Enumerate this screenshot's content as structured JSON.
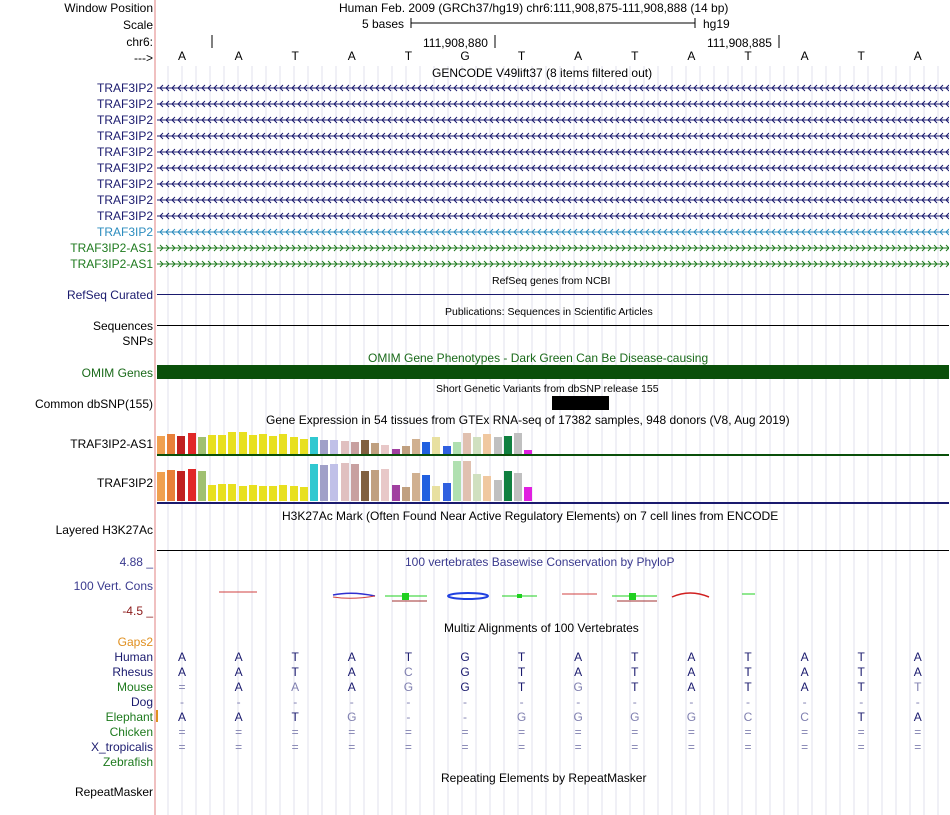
{
  "header": {
    "window_position_label": "Window Position",
    "scale_label": "Scale",
    "chrom_label": "chr6:",
    "strand_label": "--->",
    "assembly_text": "Human Feb. 2009 (GRCh37/hg19)   chr6:111,908,875-111,908,888 (14 bp)",
    "scale_text": "5 bases",
    "assembly_short": "hg19",
    "coord_1": "111,908,880",
    "coord_2": "111,908,885",
    "bases": [
      "A",
      "A",
      "T",
      "A",
      "T",
      "G",
      "T",
      "A",
      "T",
      "A",
      "T",
      "A",
      "T",
      "A"
    ]
  },
  "gencode": {
    "title": "GENCODE V49lift37 (8 items filtered out)",
    "genes": [
      {
        "name": "TRAF3IP2",
        "color": "#1a1a6e",
        "strand": "minus"
      },
      {
        "name": "TRAF3IP2",
        "color": "#1a1a6e",
        "strand": "minus"
      },
      {
        "name": "TRAF3IP2",
        "color": "#1a1a6e",
        "strand": "minus"
      },
      {
        "name": "TRAF3IP2",
        "color": "#1a1a6e",
        "strand": "minus"
      },
      {
        "name": "TRAF3IP2",
        "color": "#1a1a6e",
        "strand": "minus"
      },
      {
        "name": "TRAF3IP2",
        "color": "#1a1a6e",
        "strand": "minus"
      },
      {
        "name": "TRAF3IP2",
        "color": "#1a1a6e",
        "strand": "minus"
      },
      {
        "name": "TRAF3IP2",
        "color": "#1a1a6e",
        "strand": "minus"
      },
      {
        "name": "TRAF3IP2",
        "color": "#1a1a6e",
        "strand": "minus"
      },
      {
        "name": "TRAF3IP2",
        "color": "#2b8cbe",
        "strand": "minus"
      },
      {
        "name": "TRAF3IP2-AS1",
        "color": "#1e7a1e",
        "strand": "plus"
      },
      {
        "name": "TRAF3IP2-AS1",
        "color": "#1e7a1e",
        "strand": "plus"
      }
    ]
  },
  "refseq": {
    "title": "RefSeq genes from NCBI",
    "label": "RefSeq Curated"
  },
  "publications": {
    "title": "Publications: Sequences in Scientific Articles",
    "label_1": "Sequences",
    "label_2": "SNPs"
  },
  "omim": {
    "title": "OMIM Gene Phenotypes - Dark Green Can Be Disease-causing",
    "label": "OMIM Genes"
  },
  "dbsnp": {
    "title": "Short Genetic Variants from dbSNP release 155",
    "label": "Common dbSNP(155)"
  },
  "gtex": {
    "title": "Gene Expression in 54 tissues from GTEx RNA-seq of 17382 samples, 948 donors (V8, Aug 2019)",
    "gene_1": "TRAF3IP2-AS1",
    "gene_2": "TRAF3IP2",
    "colors": [
      "#f0a050",
      "#e8803a",
      "#c02020",
      "#e02828",
      "#a0c070",
      "#e8e020",
      "#e8e020",
      "#e8e020",
      "#e8e020",
      "#e8e020",
      "#e8e020",
      "#e8e020",
      "#e8e020",
      "#e8e020",
      "#e8e020",
      "#30c8d0",
      "#a0a0c8",
      "#c0c0e8",
      "#e0c0c0",
      "#c8a0a0",
      "#806040",
      "#c0a080",
      "#e8c8c8",
      "#a040a0",
      "#c0a080",
      "#d0b090",
      "#2060e0",
      "#e8e0a0",
      "#3060e0",
      "#b0e0b0",
      "#e0c0b0",
      "#d0e0c0",
      "#f0c8a0",
      "#c0c0c0",
      "#108040",
      "#c0c0c0",
      "#e020e0"
    ],
    "values_1": [
      18,
      20,
      18,
      21,
      17,
      19,
      19,
      22,
      22,
      19,
      20,
      18,
      20,
      17,
      15,
      17,
      14,
      14,
      13,
      12,
      14,
      11,
      9,
      5,
      8,
      15,
      12,
      17,
      8,
      12,
      21,
      17,
      20,
      17,
      18,
      21,
      4
    ],
    "values_2": [
      29,
      31,
      30,
      32,
      30,
      16,
      17,
      17,
      15,
      16,
      15,
      15,
      16,
      15,
      14,
      37,
      36,
      37,
      38,
      37,
      30,
      31,
      32,
      16,
      14,
      28,
      26,
      15,
      18,
      40,
      40,
      27,
      25,
      21,
      30,
      28,
      14
    ]
  },
  "h3k27ac": {
    "title": "H3K27Ac Mark (Often Found Near Active Regulatory Elements) on 7 cell lines from ENCODE",
    "label": "Layered H3K27Ac"
  },
  "phylop": {
    "title": "100 vertebrates Basewise Conservation by PhyloP",
    "label": "100 Vert. Cons",
    "max": "4.88 _",
    "min": "-4.5 _"
  },
  "multiz": {
    "title": "Multiz Alignments of 100 Vertebrates",
    "gaps_label": "Gaps2",
    "species": [
      {
        "name": "Human",
        "color": "#1a1a6e",
        "seq": [
          "A",
          "A",
          "T",
          "A",
          "T",
          "G",
          "T",
          "A",
          "T",
          "A",
          "T",
          "A",
          "T",
          "A"
        ]
      },
      {
        "name": "Rhesus",
        "color": "#1a1a6e",
        "seq": [
          "A",
          "A",
          "T",
          "A",
          "C",
          "G",
          "T",
          "A",
          "T",
          "A",
          "T",
          "A",
          "T",
          "A"
        ]
      },
      {
        "name": "Mouse",
        "color": "#1e7a1e",
        "seq": [
          "=",
          "A",
          "A",
          "A",
          "G",
          "G",
          "T",
          "G",
          "T",
          "A",
          "T",
          "A",
          "T",
          "T"
        ]
      },
      {
        "name": "Dog",
        "color": "#1a1a6e",
        "seq": [
          "-",
          "-",
          "-",
          "-",
          "-",
          "-",
          "-",
          "-",
          "-",
          "-",
          "-",
          "-",
          "-",
          "-"
        ]
      },
      {
        "name": "Elephant",
        "color": "#1e7a1e",
        "seq": [
          "A",
          "A",
          "T",
          "G",
          "-",
          "-",
          "G",
          "G",
          "G",
          "G",
          "C",
          "C",
          "T",
          "A"
        ]
      },
      {
        "name": "Chicken",
        "color": "#1e7a1e",
        "seq": [
          "=",
          "=",
          "=",
          "=",
          "=",
          "=",
          "=",
          "=",
          "=",
          "=",
          "=",
          "=",
          "=",
          "="
        ]
      },
      {
        "name": "X_tropicalis",
        "color": "#1a1a6e",
        "seq": [
          "=",
          "=",
          "=",
          "=",
          "=",
          "=",
          "=",
          "=",
          "=",
          "=",
          "=",
          "=",
          "=",
          "="
        ]
      },
      {
        "name": "Zebrafish",
        "color": "#1e7a1e",
        "seq": [
          "",
          "",
          "",
          "",
          "",
          "",
          "",
          "",
          "",
          "",
          "",
          "",
          "",
          ""
        ]
      }
    ]
  },
  "repeatmasker": {
    "title": "Repeating Elements by RepeatMasker",
    "label": "RepeatMasker"
  }
}
